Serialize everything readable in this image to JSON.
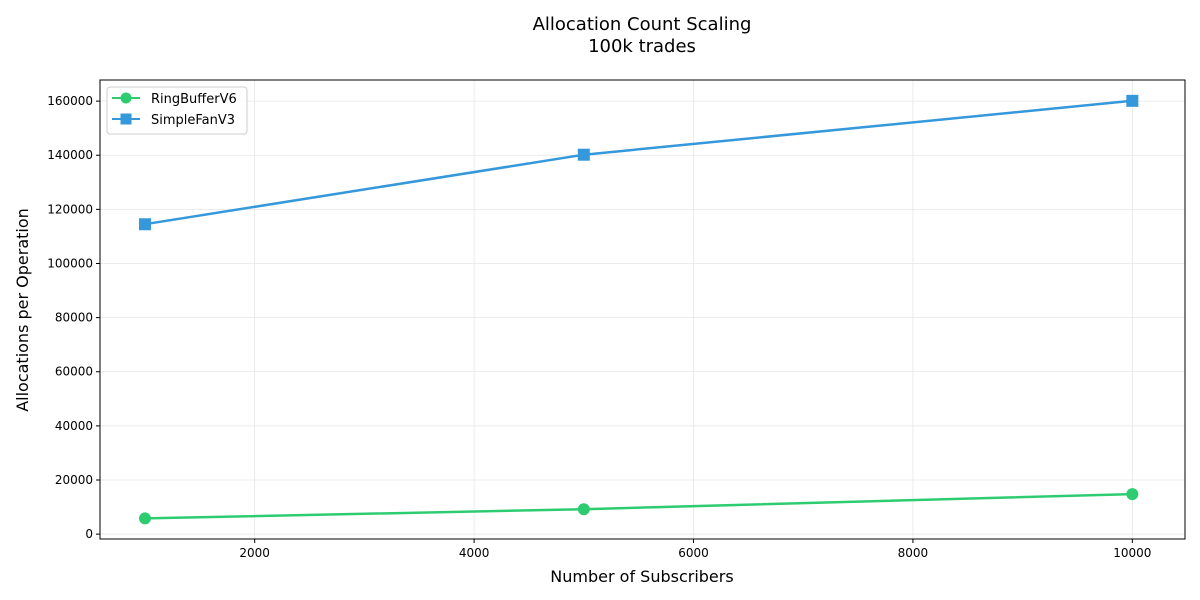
{
  "chart_data": {
    "type": "line",
    "title": "Allocation Count Scaling",
    "subtitle": "100k trades",
    "xlabel": "Number of Subscribers",
    "ylabel": "Allocations per Operation",
    "x": [
      1000,
      5000,
      10000
    ],
    "xlim": [
      590,
      10480
    ],
    "ylim": [
      -1800,
      167800
    ],
    "xticks": [
      2000,
      4000,
      6000,
      8000,
      10000
    ],
    "yticks": [
      0,
      20000,
      40000,
      60000,
      80000,
      100000,
      120000,
      140000,
      160000
    ],
    "grid": true,
    "legend_position": "top-left",
    "series": [
      {
        "name": "RingBufferV6",
        "values": [
          5800,
          9200,
          14800
        ],
        "color": "#2ecc71",
        "marker": "circle"
      },
      {
        "name": "SimpleFanV3",
        "values": [
          114500,
          140200,
          160100
        ],
        "color": "#3498db",
        "marker": "square"
      }
    ]
  }
}
